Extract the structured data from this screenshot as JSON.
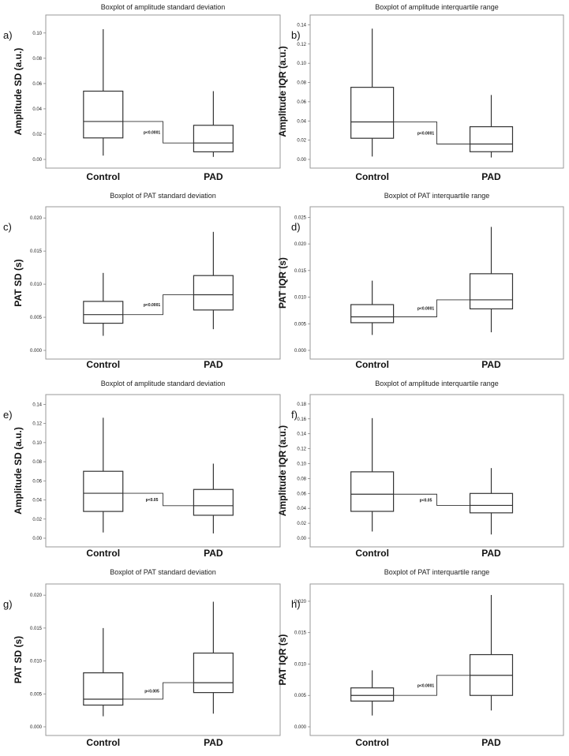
{
  "chart_data": [
    {
      "letter": "a)",
      "type": "boxplot",
      "title": "Boxplot of amplitude standard deviation",
      "ylabel": "Amplitude SD (a.u.)",
      "categories": [
        "Control",
        "PAD"
      ],
      "yticks": [
        "0.00",
        "0.02",
        "0.04",
        "0.06",
        "0.08",
        "0.10"
      ],
      "ylim": [
        0,
        0.108
      ],
      "boxes": [
        {
          "category": "Control",
          "min": 0.003,
          "q1": 0.017,
          "median": 0.03,
          "q3": 0.054,
          "max": 0.103
        },
        {
          "category": "PAD",
          "min": 0.002,
          "q1": 0.006,
          "median": 0.013,
          "q3": 0.027,
          "max": 0.054
        }
      ],
      "pvalue": "p<0.0001"
    },
    {
      "letter": "b)",
      "type": "boxplot",
      "title": "Boxplot of amplitude interquartile range",
      "ylabel": "Amplitude IQR (a.u.)",
      "categories": [
        "Control",
        "PAD"
      ],
      "yticks": [
        "0.00",
        "0.02",
        "0.04",
        "0.06",
        "0.08",
        "0.10",
        "0.12",
        "0.14"
      ],
      "ylim": [
        0,
        0.142
      ],
      "boxes": [
        {
          "category": "Control",
          "min": 0.003,
          "q1": 0.022,
          "median": 0.039,
          "q3": 0.075,
          "max": 0.136
        },
        {
          "category": "PAD",
          "min": 0.002,
          "q1": 0.008,
          "median": 0.016,
          "q3": 0.034,
          "max": 0.067
        }
      ],
      "pvalue": "p<0.0001"
    },
    {
      "letter": "c)",
      "type": "boxplot",
      "title": "Boxplot of PAT standard deviation",
      "ylabel": "PAT SD (s)",
      "categories": [
        "Control",
        "PAD"
      ],
      "yticks": [
        "0.000",
        "0.005",
        "0.010",
        "0.015",
        "0.020"
      ],
      "ylim": [
        0,
        0.0205
      ],
      "boxes": [
        {
          "category": "Control",
          "min": 0.0022,
          "q1": 0.0041,
          "median": 0.0054,
          "q3": 0.0074,
          "max": 0.0117
        },
        {
          "category": "PAD",
          "min": 0.0032,
          "q1": 0.0061,
          "median": 0.0084,
          "q3": 0.0113,
          "max": 0.0179
        }
      ],
      "pvalue": "p<0.0001"
    },
    {
      "letter": "d)",
      "type": "boxplot",
      "title": "Boxplot of PAT interquartile range",
      "ylabel": "PAT IQR (s)",
      "categories": [
        "Control",
        "PAD"
      ],
      "yticks": [
        "0.000",
        "0.005",
        "0.010",
        "0.015",
        "0.020",
        "0.025"
      ],
      "ylim": [
        0,
        0.0255
      ],
      "boxes": [
        {
          "category": "Control",
          "min": 0.0029,
          "q1": 0.0052,
          "median": 0.0063,
          "q3": 0.0086,
          "max": 0.0131
        },
        {
          "category": "PAD",
          "min": 0.0034,
          "q1": 0.0078,
          "median": 0.0095,
          "q3": 0.0144,
          "max": 0.0232
        }
      ],
      "pvalue": "p<0.0001"
    },
    {
      "letter": "e)",
      "type": "boxplot",
      "title": "Boxplot of amplitude standard deviation",
      "ylabel": "Amplitude SD (a.u.)",
      "categories": [
        "Control",
        "PAD"
      ],
      "yticks": [
        "0.00",
        "0.02",
        "0.04",
        "0.06",
        "0.08",
        "0.10",
        "0.12",
        "0.14"
      ],
      "ylim": [
        0,
        0.142
      ],
      "boxes": [
        {
          "category": "Control",
          "min": 0.006,
          "q1": 0.028,
          "median": 0.047,
          "q3": 0.07,
          "max": 0.126
        },
        {
          "category": "PAD",
          "min": 0.005,
          "q1": 0.024,
          "median": 0.034,
          "q3": 0.051,
          "max": 0.078
        }
      ],
      "pvalue": "p<0.05"
    },
    {
      "letter": "f)",
      "type": "boxplot",
      "title": "Boxplot of amplitude interquartile range",
      "ylabel": "Amplitude IQR (a.u.)",
      "categories": [
        "Control",
        "PAD"
      ],
      "yticks": [
        "0.00",
        "0.02",
        "0.04",
        "0.06",
        "0.08",
        "0.10",
        "0.12",
        "0.14",
        "0.16",
        "0.18"
      ],
      "ylim": [
        0,
        0.182
      ],
      "boxes": [
        {
          "category": "Control",
          "min": 0.009,
          "q1": 0.036,
          "median": 0.059,
          "q3": 0.089,
          "max": 0.161
        },
        {
          "category": "PAD",
          "min": 0.005,
          "q1": 0.034,
          "median": 0.044,
          "q3": 0.06,
          "max": 0.094
        }
      ],
      "pvalue": "p<0.05"
    },
    {
      "letter": "g)",
      "type": "boxplot",
      "title": "Boxplot of PAT standard deviation",
      "ylabel": "PAT SD (s)",
      "categories": [
        "Control",
        "PAD"
      ],
      "yticks": [
        "0.000",
        "0.005",
        "0.010",
        "0.015",
        "0.020"
      ],
      "ylim": [
        0,
        0.0205
      ],
      "boxes": [
        {
          "category": "Control",
          "min": 0.0016,
          "q1": 0.0033,
          "median": 0.0042,
          "q3": 0.0082,
          "max": 0.015
        },
        {
          "category": "PAD",
          "min": 0.002,
          "q1": 0.0052,
          "median": 0.0067,
          "q3": 0.0112,
          "max": 0.019
        }
      ],
      "pvalue": "p<0.005"
    },
    {
      "letter": "h)",
      "type": "boxplot",
      "title": "Boxplot of PAT interquartile range",
      "ylabel": "PAT IQR (s)",
      "categories": [
        "Control",
        "PAD"
      ],
      "yticks": [
        "0.000",
        "0.005",
        "0.010",
        "0.015",
        "0.020"
      ],
      "ylim": [
        0,
        0.0215
      ],
      "boxes": [
        {
          "category": "Control",
          "min": 0.0018,
          "q1": 0.0041,
          "median": 0.005,
          "q3": 0.0062,
          "max": 0.009
        },
        {
          "category": "PAD",
          "min": 0.0026,
          "q1": 0.005,
          "median": 0.0082,
          "q3": 0.0115,
          "max": 0.021
        }
      ],
      "pvalue": "p<0.0001"
    }
  ]
}
